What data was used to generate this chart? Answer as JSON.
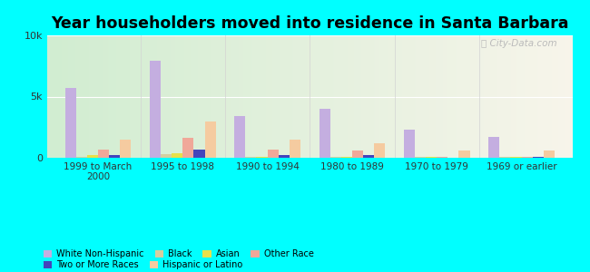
{
  "title": "Year householders moved into residence in Santa Barbara",
  "categories": [
    "1999 to March\n2000",
    "1995 to 1998",
    "1990 to 1994",
    "1980 to 1989",
    "1970 to 1979",
    "1969 or earlier"
  ],
  "series_order": [
    "White Non-Hispanic",
    "Black",
    "Asian",
    "Other Race",
    "Two or More Races",
    "Hispanic or Latino"
  ],
  "series": {
    "White Non-Hispanic": [
      5700,
      7900,
      3400,
      4000,
      2300,
      1700
    ],
    "Black": [
      100,
      300,
      50,
      100,
      50,
      50
    ],
    "Asian": [
      200,
      350,
      100,
      100,
      50,
      50
    ],
    "Other Race": [
      700,
      1600,
      700,
      600,
      100,
      100
    ],
    "Two or More Races": [
      250,
      700,
      200,
      250,
      0,
      50
    ],
    "Hispanic or Latino": [
      1500,
      3000,
      1500,
      1200,
      600,
      600
    ]
  },
  "colors": {
    "White Non-Hispanic": "#c4aee0",
    "Black": "#d4cfa0",
    "Asian": "#e8e04a",
    "Other Race": "#f0a899",
    "Two or More Races": "#4444bb",
    "Hispanic or Latino": "#f5cba0"
  },
  "ylim": [
    0,
    10000
  ],
  "yticks": [
    0,
    5000,
    10000
  ],
  "ytick_labels": [
    "0",
    "5k",
    "10k"
  ],
  "background_color": "#00ffff",
  "watermark": "City-Data.com",
  "bar_width": 0.13
}
